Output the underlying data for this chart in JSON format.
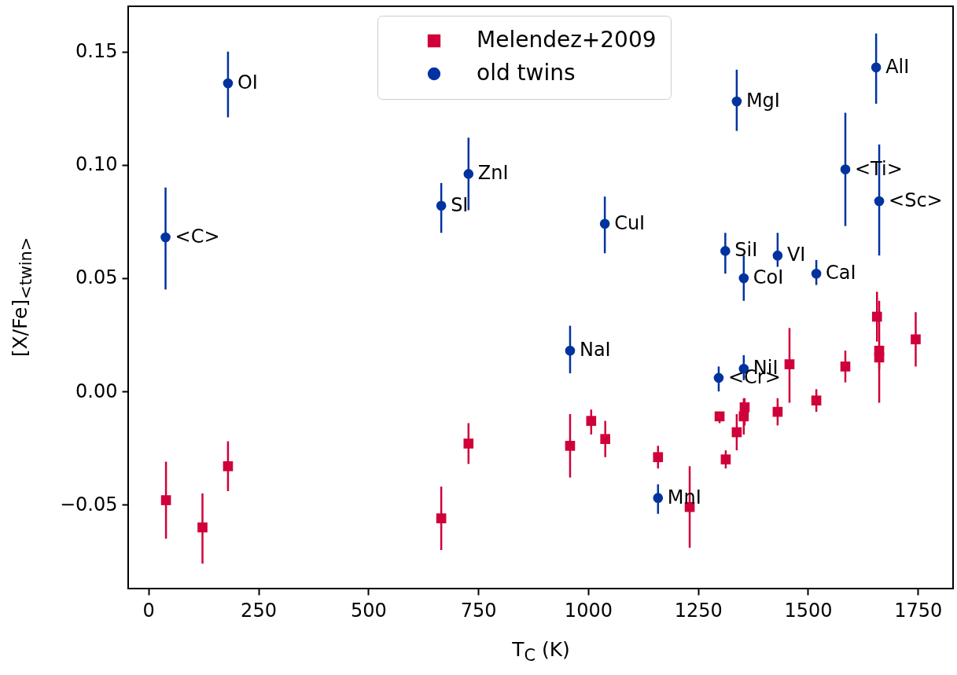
{
  "chart_data": {
    "type": "scatter",
    "xlabel": "T$_{C}$ (K)",
    "ylabel": "[X/Fe]$_{<twin>}$",
    "xlim": [
      -46,
      1830
    ],
    "ylim": [
      -0.087,
      0.17
    ],
    "xticks": [
      0,
      250,
      500,
      750,
      1000,
      1250,
      1500,
      1750
    ],
    "yticks": [
      {
        "value": -0.05,
        "label": "−0.05"
      },
      {
        "value": 0,
        "label": "0.00"
      },
      {
        "value": 0.05,
        "label": "0.05"
      },
      {
        "value": 0.1,
        "label": "0.10"
      },
      {
        "value": 0.15,
        "label": "0.15"
      }
    ],
    "legend": "top",
    "grid": false,
    "series": [
      {
        "name": "Melendez+2009",
        "color": "#d0003a",
        "marker": "square",
        "x": [
          40,
          123,
          181,
          666,
          728,
          959,
          1007,
          1039,
          1159,
          1231,
          1299,
          1313,
          1338,
          1356,
          1354,
          1431,
          1458,
          1519,
          1585,
          1657,
          1662,
          1662,
          1745
        ],
        "values": [
          -0.048,
          -0.06,
          -0.033,
          -0.056,
          -0.023,
          -0.024,
          -0.013,
          -0.021,
          -0.029,
          -0.051,
          -0.011,
          -0.03,
          -0.018,
          -0.007,
          -0.011,
          -0.009,
          0.012,
          -0.004,
          0.011,
          0.033,
          0.018,
          0.015,
          0.023
        ],
        "errors": [
          [
            -0.065,
            -0.031
          ],
          [
            -0.076,
            -0.045
          ],
          [
            -0.044,
            -0.022
          ],
          [
            -0.07,
            -0.042
          ],
          [
            -0.032,
            -0.014
          ],
          [
            -0.038,
            -0.01
          ],
          [
            -0.019,
            -0.008
          ],
          [
            -0.029,
            -0.013
          ],
          [
            -0.034,
            -0.024
          ],
          [
            -0.069,
            -0.033
          ],
          [
            -0.014,
            -0.009
          ],
          [
            -0.034,
            -0.026
          ],
          [
            -0.026,
            -0.01
          ],
          [
            -0.015,
            -0.003
          ],
          [
            -0.019,
            -0.003
          ],
          [
            -0.015,
            -0.003
          ],
          [
            -0.005,
            0.028
          ],
          [
            -0.009,
            0.001
          ],
          [
            0.004,
            0.018
          ],
          [
            0.022,
            0.044
          ],
          [
            -0.005,
            0.04
          ],
          [
            0.01,
            0.02
          ],
          [
            0.011,
            0.035
          ]
        ]
      },
      {
        "name": "old twins",
        "color": "#0033a0",
        "marker": "circle",
        "x": [
          39,
          181,
          666,
          728,
          1038,
          959,
          1159,
          1297,
          1354,
          1312,
          1354,
          1431,
          1519,
          1338,
          1585,
          1655,
          1662
        ],
        "values": [
          0.068,
          0.136,
          0.082,
          0.096,
          0.074,
          0.018,
          -0.047,
          0.006,
          0.01,
          0.062,
          0.05,
          0.06,
          0.052,
          0.128,
          0.098,
          0.143,
          0.084
        ],
        "errors": [
          [
            0.045,
            0.09
          ],
          [
            0.121,
            0.15
          ],
          [
            0.07,
            0.092
          ],
          [
            0.08,
            0.112
          ],
          [
            0.061,
            0.086
          ],
          [
            0.008,
            0.029
          ],
          [
            -0.054,
            -0.041
          ],
          [
            0.0,
            0.011
          ],
          [
            0.005,
            0.016
          ],
          [
            0.052,
            0.07
          ],
          [
            0.04,
            0.06
          ],
          [
            0.055,
            0.07
          ],
          [
            0.047,
            0.058
          ],
          [
            0.115,
            0.142
          ],
          [
            0.073,
            0.123
          ],
          [
            0.127,
            0.158
          ],
          [
            0.06,
            0.109
          ]
        ]
      }
    ],
    "annotations": [
      {
        "text": "<C>",
        "x": 39,
        "y": 0.068
      },
      {
        "text": "OI",
        "x": 181,
        "y": 0.136
      },
      {
        "text": "SI",
        "x": 666,
        "y": 0.082
      },
      {
        "text": "ZnI",
        "x": 728,
        "y": 0.096
      },
      {
        "text": "CuI",
        "x": 1038,
        "y": 0.074
      },
      {
        "text": "NaI",
        "x": 959,
        "y": 0.018
      },
      {
        "text": "MnI",
        "x": 1159,
        "y": -0.047
      },
      {
        "text": "<Cr>",
        "x": 1297,
        "y": 0.006
      },
      {
        "text": "NiI",
        "x": 1354,
        "y": 0.01
      },
      {
        "text": "SiI",
        "x": 1312,
        "y": 0.062
      },
      {
        "text": "CoI",
        "x": 1354,
        "y": 0.05
      },
      {
        "text": "VI",
        "x": 1431,
        "y": 0.06
      },
      {
        "text": "CaI",
        "x": 1519,
        "y": 0.052
      },
      {
        "text": "MgI",
        "x": 1338,
        "y": 0.128
      },
      {
        "text": "<Ti>",
        "x": 1585,
        "y": 0.098
      },
      {
        "text": "AlI",
        "x": 1655,
        "y": 0.143
      },
      {
        "text": "<Sc>",
        "x": 1662,
        "y": 0.084
      }
    ]
  }
}
